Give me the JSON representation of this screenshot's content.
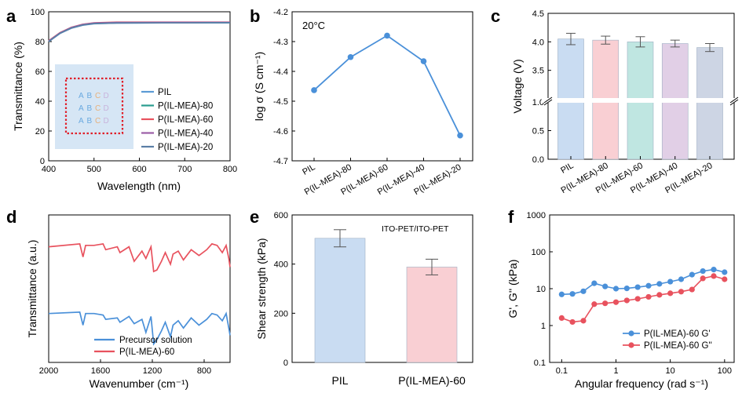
{
  "chart_data": [
    {
      "panel": "a",
      "type": "line",
      "xlabel": "Wavelength (nm)",
      "ylabel": "Transmittance (%)",
      "xlim": [
        400,
        800
      ],
      "ylim": [
        0,
        100
      ],
      "xticks": [
        400,
        500,
        600,
        700,
        800
      ],
      "yticks": [
        0,
        20,
        40,
        60,
        80,
        100
      ],
      "legend_position": "lower-right",
      "inset_photo_letters": [
        "A",
        "B",
        "C",
        "D"
      ],
      "series": [
        {
          "name": "PIL",
          "color": "#5b9bd5",
          "x": [
            400,
            425,
            450,
            475,
            500,
            550,
            600,
            650,
            700,
            750,
            800
          ],
          "y": [
            80,
            85.5,
            89,
            91,
            92,
            92.5,
            92.5,
            92.6,
            92.6,
            92.6,
            92.6
          ]
        },
        {
          "name": "P(IL-MEA)-80",
          "color": "#2a9d8f",
          "x": [
            400,
            425,
            450,
            475,
            500,
            550,
            600,
            650,
            700,
            750,
            800
          ],
          "y": [
            80.2,
            85.7,
            89.2,
            91.2,
            92.2,
            92.6,
            92.7,
            92.7,
            92.7,
            92.8,
            92.8
          ]
        },
        {
          "name": "P(IL-MEA)-60",
          "color": "#e8525e",
          "x": [
            400,
            425,
            450,
            475,
            500,
            550,
            600,
            650,
            700,
            750,
            800
          ],
          "y": [
            80.5,
            86,
            89.6,
            91.6,
            92.6,
            93,
            93,
            93,
            93,
            93,
            93
          ]
        },
        {
          "name": "P(IL-MEA)-40",
          "color": "#9b5ea7",
          "x": [
            400,
            425,
            450,
            475,
            500,
            550,
            600,
            650,
            700,
            750,
            800
          ],
          "y": [
            80.3,
            85.8,
            89.4,
            91.4,
            92.4,
            92.8,
            92.8,
            92.9,
            92.9,
            92.9,
            92.9
          ]
        },
        {
          "name": "P(IL-MEA)-20",
          "color": "#5a7ea6",
          "x": [
            400,
            425,
            450,
            475,
            500,
            550,
            600,
            650,
            700,
            750,
            800
          ],
          "y": [
            80.1,
            85.6,
            89.1,
            91.1,
            92.1,
            92.5,
            92.6,
            92.6,
            92.6,
            92.7,
            92.7
          ]
        }
      ]
    },
    {
      "panel": "b",
      "type": "line",
      "annotation": "20°C",
      "ylabel": "log σ (S cm⁻¹)",
      "ylim": [
        -4.7,
        -4.2
      ],
      "yticks": [
        -4.2,
        -4.3,
        -4.4,
        -4.5,
        -4.6,
        -4.7
      ],
      "categories": [
        "PIL",
        "P(IL-MEA)-80",
        "P(IL-MEA)-60",
        "P(IL-MEA)-40",
        "P(IL-MEA)-20"
      ],
      "series": [
        {
          "color": "#4a90d9",
          "values": [
            -4.463,
            -4.352,
            -4.28,
            -4.366,
            -4.615
          ]
        }
      ]
    },
    {
      "panel": "c",
      "type": "bar",
      "ylabel": "Voltage (V)",
      "axis_break": [
        1.0,
        3.0
      ],
      "yticks": [
        0.0,
        0.5,
        1.0,
        3.5,
        4.0,
        4.5
      ],
      "categories": [
        "PIL",
        "P(IL-MEA)-80",
        "P(IL-MEA)-60",
        "P(IL-MEA)-40",
        "P(IL-MEA)-20"
      ],
      "values": [
        4.05,
        4.03,
        4.0,
        3.97,
        3.9
      ],
      "errors": [
        0.1,
        0.07,
        0.09,
        0.06,
        0.07
      ],
      "colors": [
        "#c9dcf2",
        "#f9cfd3",
        "#bfe6e1",
        "#e1cfe6",
        "#cdd5e4"
      ]
    },
    {
      "panel": "d",
      "type": "line",
      "xlabel": "Wavenumber (cm⁻¹)",
      "ylabel": "Transmittance (a.u.)",
      "xlim": [
        2000,
        600
      ],
      "xticks": [
        2000,
        1600,
        1200,
        800
      ],
      "legend_position": "bottom-center",
      "series": [
        {
          "name": "Precursor solution",
          "color": "#4a90d9",
          "x": [
            2000,
            1760,
            1735,
            1715,
            1650,
            1580,
            1560,
            1470,
            1450,
            1380,
            1340,
            1280,
            1250,
            1210,
            1190,
            1165,
            1130,
            1100,
            1060,
            1040,
            1000,
            960,
            900,
            840,
            780,
            740,
            700,
            660,
            630,
            610,
            600
          ],
          "y": [
            0.62,
            0.61,
            0.7,
            0.62,
            0.62,
            0.63,
            0.66,
            0.65,
            0.68,
            0.64,
            0.69,
            0.66,
            0.75,
            0.64,
            0.83,
            0.8,
            0.74,
            0.68,
            0.78,
            0.7,
            0.67,
            0.72,
            0.65,
            0.7,
            0.66,
            0.62,
            0.63,
            0.67,
            0.62,
            0.72,
            0.77
          ]
        },
        {
          "name": "P(IL-MEA)-60",
          "color": "#e8525e",
          "x": [
            2000,
            1760,
            1735,
            1715,
            1650,
            1580,
            1560,
            1470,
            1450,
            1380,
            1340,
            1280,
            1250,
            1210,
            1190,
            1165,
            1130,
            1100,
            1060,
            1040,
            1000,
            960,
            900,
            840,
            780,
            740,
            700,
            660,
            630,
            610,
            600
          ],
          "y": [
            0.16,
            0.14,
            0.23,
            0.15,
            0.15,
            0.14,
            0.18,
            0.16,
            0.2,
            0.16,
            0.26,
            0.19,
            0.24,
            0.16,
            0.33,
            0.32,
            0.26,
            0.2,
            0.28,
            0.21,
            0.19,
            0.25,
            0.18,
            0.22,
            0.18,
            0.14,
            0.15,
            0.2,
            0.15,
            0.24,
            0.3
          ]
        }
      ]
    },
    {
      "panel": "e",
      "type": "bar",
      "annotation": "ITO-PET/ITO-PET",
      "ylabel": "Shear strength (kPa)",
      "ylim": [
        0,
        600
      ],
      "yticks": [
        0,
        200,
        400,
        600
      ],
      "categories": [
        "PIL",
        "P(IL-MEA)-60"
      ],
      "values": [
        505,
        388
      ],
      "errors": [
        35,
        32
      ],
      "colors": [
        "#c9dcf2",
        "#f9cfd3"
      ]
    },
    {
      "panel": "f",
      "type": "line",
      "xlabel": "Angular frequency (rad s⁻¹)",
      "ylabel": "G', G'' (kPa)",
      "xscale": "log",
      "yscale": "log",
      "xlim": [
        0.06,
        150
      ],
      "ylim": [
        0.1,
        1000
      ],
      "xticks": [
        0.1,
        1,
        10,
        100
      ],
      "yticks": [
        0.1,
        1,
        10,
        100,
        1000
      ],
      "legend_position": "bottom-right",
      "series": [
        {
          "name": "P(IL-MEA)-60 G'",
          "color": "#4a90d9",
          "x": [
            0.1,
            0.158,
            0.251,
            0.398,
            0.631,
            1.0,
            1.585,
            2.512,
            3.981,
            6.31,
            10,
            15.85,
            25.12,
            39.81,
            63.1,
            100
          ],
          "y": [
            7,
            7.2,
            8.5,
            14,
            11.5,
            10,
            10.2,
            11,
            12,
            13.5,
            15.5,
            18,
            24,
            30,
            33,
            28
          ]
        },
        {
          "name": "P(IL-MEA)-60 G''",
          "color": "#e8525e",
          "x": [
            0.1,
            0.158,
            0.251,
            0.398,
            0.631,
            1.0,
            1.585,
            2.512,
            3.981,
            6.31,
            10,
            15.85,
            25.12,
            39.81,
            63.1,
            100
          ],
          "y": [
            1.6,
            1.25,
            1.35,
            3.8,
            4.0,
            4.3,
            4.8,
            5.3,
            6.0,
            6.8,
            7.5,
            8.3,
            9.5,
            19,
            22,
            18
          ]
        }
      ]
    }
  ]
}
